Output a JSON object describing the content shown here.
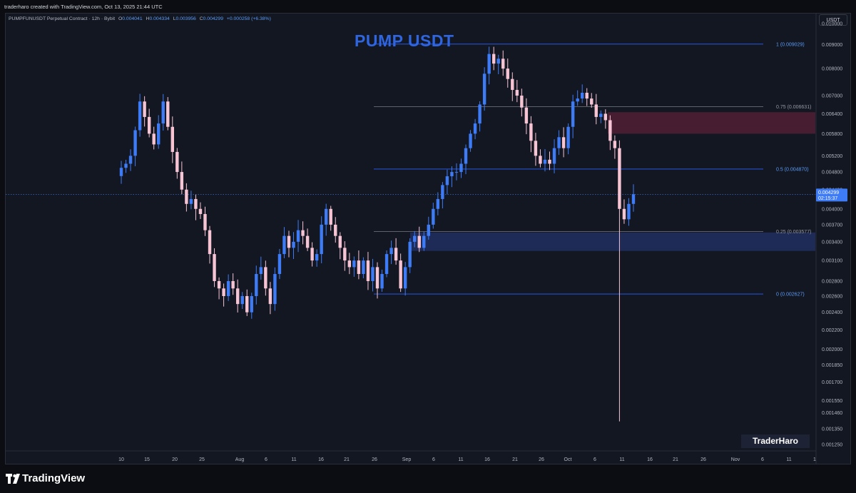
{
  "header": {
    "created_by": "traderharo created with TradingView.com, Oct 13, 2025 21:44 UTC"
  },
  "legend": {
    "symbol": "PUMPFUNUSDT Perpetual Contract · 12h · Bybit",
    "o_label": "O",
    "o_value": "0.004041",
    "h_label": "H",
    "h_value": "0.004334",
    "l_label": "L",
    "l_value": "0.003956",
    "c_label": "C",
    "c_value": "0.004299",
    "change": "+0.000258 (+6.38%)"
  },
  "currency_button": "USDT",
  "brand": {
    "name": "TradingView"
  },
  "colors": {
    "background": "#131722",
    "bull": "#3d7bf7",
    "bear": "#f7c4d4",
    "fib_blue": "#2962ff",
    "supply_zone": "#4a1f33",
    "demand_zone": "#1e2c5a",
    "title": "#2f66e0"
  },
  "chart_data": {
    "type": "candlestick",
    "title": "PUMP USDT",
    "watermark": "TraderHaro",
    "y_scale": "log",
    "ylim": [
      0.00121,
      0.0105
    ],
    "y_ticks": [
      "0.010000",
      "0.009000",
      "0.008000",
      "0.007000",
      "0.006400",
      "0.005800",
      "0.005200",
      "0.004800",
      "0.004400",
      "0.004000",
      "0.003700",
      "0.003400",
      "0.003100",
      "0.002800",
      "0.002600",
      "0.002400",
      "0.002200",
      "0.002000",
      "0.001850",
      "0.001700",
      "0.001550",
      "0.001460",
      "0.001350",
      "0.001250"
    ],
    "x_tick_labels": [
      "10",
      "15",
      "20",
      "25",
      "Aug",
      "6",
      "11",
      "16",
      "21",
      "26",
      "Sep",
      "6",
      "11",
      "16",
      "21",
      "26",
      "Oct",
      "6",
      "11",
      "16",
      "21",
      "26",
      "Nov",
      "6",
      "11",
      "1"
    ],
    "current_price": {
      "price": "0.004299",
      "countdown": "02:15:37"
    },
    "fib_levels": [
      {
        "ratio": 1,
        "price": 0.009029,
        "label": "1 (0.009029)"
      },
      {
        "ratio": 0.75,
        "price": 0.006631,
        "label": "0.75 (0.006631)"
      },
      {
        "ratio": 0.5,
        "price": 0.00487,
        "label": "0.5 (0.004870)"
      },
      {
        "ratio": 0.25,
        "price": 0.003577,
        "label": "0.25 (0.003577)"
      },
      {
        "ratio": 0,
        "price": 0.002627,
        "label": "0 (0.002627)"
      }
    ],
    "zones": [
      {
        "kind": "supply",
        "top": 0.00645,
        "bottom": 0.0058
      },
      {
        "kind": "demand",
        "top": 0.00356,
        "bottom": 0.00325
      }
    ],
    "close_path": [
      [
        0,
        0.0049
      ],
      [
        1,
        0.005
      ],
      [
        2,
        0.0052
      ],
      [
        3,
        0.0059
      ],
      [
        4,
        0.0068
      ],
      [
        5,
        0.0063
      ],
      [
        6,
        0.0058
      ],
      [
        7,
        0.0055
      ],
      [
        8,
        0.0061
      ],
      [
        9,
        0.0068
      ],
      [
        10,
        0.006
      ],
      [
        11,
        0.0053
      ],
      [
        12,
        0.0048
      ],
      [
        13,
        0.0044
      ],
      [
        14,
        0.0041
      ],
      [
        15,
        0.0042
      ],
      [
        16,
        0.004
      ],
      [
        17,
        0.0039
      ],
      [
        18,
        0.0036
      ],
      [
        19,
        0.0032
      ],
      [
        20,
        0.0028
      ],
      [
        21,
        0.0027
      ],
      [
        22,
        0.0026
      ],
      [
        23,
        0.0028
      ],
      [
        24,
        0.0027
      ],
      [
        25,
        0.0025
      ],
      [
        26,
        0.0026
      ],
      [
        27,
        0.0024
      ],
      [
        28,
        0.0026
      ],
      [
        29,
        0.0029
      ],
      [
        30,
        0.003
      ],
      [
        31,
        0.0027
      ],
      [
        32,
        0.0025
      ],
      [
        33,
        0.0029
      ],
      [
        34,
        0.0032
      ],
      [
        35,
        0.0035
      ],
      [
        36,
        0.0033
      ],
      [
        37,
        0.0034
      ],
      [
        38,
        0.0036
      ],
      [
        39,
        0.0035
      ],
      [
        40,
        0.0033
      ],
      [
        41,
        0.0031
      ],
      [
        42,
        0.0032
      ],
      [
        43,
        0.0037
      ],
      [
        44,
        0.004
      ],
      [
        45,
        0.0037
      ],
      [
        46,
        0.0035
      ],
      [
        47,
        0.0033
      ],
      [
        48,
        0.0031
      ],
      [
        49,
        0.003
      ],
      [
        50,
        0.0031
      ],
      [
        51,
        0.0029
      ],
      [
        52,
        0.0031
      ],
      [
        53,
        0.0028
      ],
      [
        54,
        0.003
      ],
      [
        55,
        0.0027
      ],
      [
        56,
        0.0029
      ],
      [
        57,
        0.0032
      ],
      [
        58,
        0.0033
      ],
      [
        59,
        0.0031
      ],
      [
        60,
        0.0027
      ],
      [
        61,
        0.003
      ],
      [
        62,
        0.0034
      ],
      [
        63,
        0.0035
      ],
      [
        64,
        0.0033
      ],
      [
        65,
        0.0035
      ],
      [
        66,
        0.0037
      ],
      [
        67,
        0.004
      ],
      [
        68,
        0.0042
      ],
      [
        69,
        0.0045
      ],
      [
        70,
        0.0047
      ],
      [
        71,
        0.0048
      ],
      [
        72,
        0.0048
      ],
      [
        73,
        0.005
      ],
      [
        74,
        0.0054
      ],
      [
        75,
        0.0058
      ],
      [
        76,
        0.0061
      ],
      [
        77,
        0.0067
      ],
      [
        78,
        0.0078
      ],
      [
        79,
        0.0086
      ],
      [
        80,
        0.0082
      ],
      [
        81,
        0.0084
      ],
      [
        82,
        0.008
      ],
      [
        83,
        0.0076
      ],
      [
        84,
        0.0072
      ],
      [
        85,
        0.007
      ],
      [
        86,
        0.0066
      ],
      [
        87,
        0.0061
      ],
      [
        88,
        0.0056
      ],
      [
        89,
        0.0052
      ],
      [
        90,
        0.005
      ],
      [
        91,
        0.0051
      ],
      [
        92,
        0.005
      ],
      [
        93,
        0.0054
      ],
      [
        94,
        0.0057
      ],
      [
        95,
        0.0054
      ],
      [
        96,
        0.006
      ],
      [
        97,
        0.0068
      ],
      [
        98,
        0.0069
      ],
      [
        99,
        0.0071
      ],
      [
        100,
        0.0069
      ],
      [
        101,
        0.0067
      ],
      [
        102,
        0.0063
      ],
      [
        103,
        0.0064
      ],
      [
        104,
        0.0062
      ],
      [
        105,
        0.0056
      ],
      [
        106,
        0.0054
      ],
      [
        107,
        0.004
      ],
      [
        108,
        0.0038
      ],
      [
        109,
        0.0041
      ],
      [
        110,
        0.0043
      ]
    ]
  }
}
